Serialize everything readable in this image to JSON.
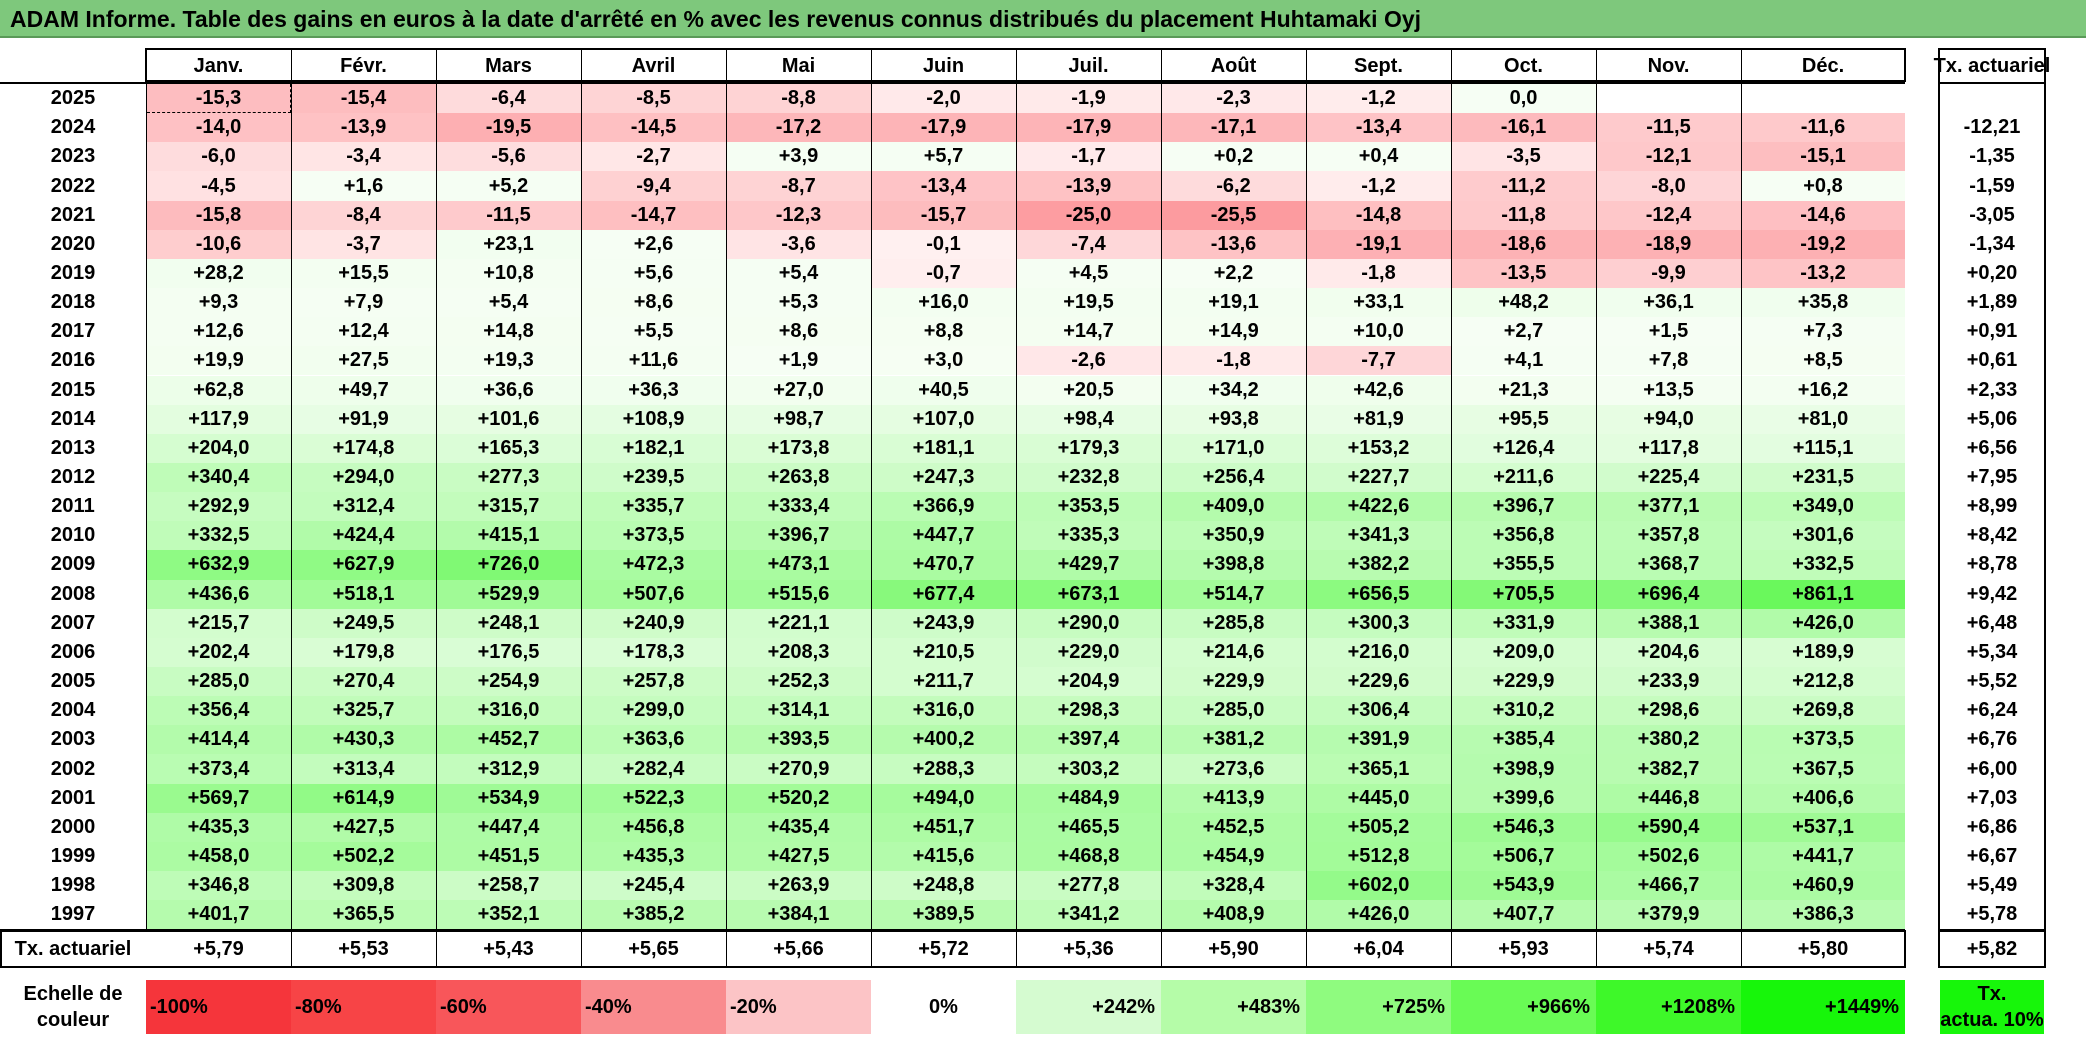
{
  "title": "ADAM Informe. Table des gains en euros à la date d'arrêté en % avec les revenus connus distribués du placement Huhtamaki Oyj",
  "months": [
    "Janv.",
    "Févr.",
    "Mars",
    "Avril",
    "Mai",
    "Juin",
    "Juil.",
    "Août",
    "Sept.",
    "Oct.",
    "Nov.",
    "Déc."
  ],
  "actuarial_header": "Tx. actuariel",
  "rows": [
    {
      "year": "2025",
      "values": [
        "-15,3",
        "-15,4",
        "-6,4",
        "-8,5",
        "-8,8",
        "-2,0",
        "-1,9",
        "-2,3",
        "-1,2",
        "0,0",
        "",
        ""
      ],
      "actuarial": ""
    },
    {
      "year": "2024",
      "values": [
        "-14,0",
        "-13,9",
        "-19,5",
        "-14,5",
        "-17,2",
        "-17,9",
        "-17,9",
        "-17,1",
        "-13,4",
        "-16,1",
        "-11,5",
        "-11,6"
      ],
      "actuarial": "-12,21"
    },
    {
      "year": "2023",
      "values": [
        "-6,0",
        "-3,4",
        "-5,6",
        "-2,7",
        "+3,9",
        "+5,7",
        "-1,7",
        "+0,2",
        "+0,4",
        "-3,5",
        "-12,1",
        "-15,1"
      ],
      "actuarial": "-1,35"
    },
    {
      "year": "2022",
      "values": [
        "-4,5",
        "+1,6",
        "+5,2",
        "-9,4",
        "-8,7",
        "-13,4",
        "-13,9",
        "-6,2",
        "-1,2",
        "-11,2",
        "-8,0",
        "+0,8"
      ],
      "actuarial": "-1,59"
    },
    {
      "year": "2021",
      "values": [
        "-15,8",
        "-8,4",
        "-11,5",
        "-14,7",
        "-12,3",
        "-15,7",
        "-25,0",
        "-25,5",
        "-14,8",
        "-11,8",
        "-12,4",
        "-14,6"
      ],
      "actuarial": "-3,05"
    },
    {
      "year": "2020",
      "values": [
        "-10,6",
        "-3,7",
        "+23,1",
        "+2,6",
        "-3,6",
        "-0,1",
        "-7,4",
        "-13,6",
        "-19,1",
        "-18,6",
        "-18,9",
        "-19,2"
      ],
      "actuarial": "-1,34"
    },
    {
      "year": "2019",
      "values": [
        "+28,2",
        "+15,5",
        "+10,8",
        "+5,6",
        "+5,4",
        "-0,7",
        "+4,5",
        "+2,2",
        "-1,8",
        "-13,5",
        "-9,9",
        "-13,2"
      ],
      "actuarial": "+0,20"
    },
    {
      "year": "2018",
      "values": [
        "+9,3",
        "+7,9",
        "+5,4",
        "+8,6",
        "+5,3",
        "+16,0",
        "+19,5",
        "+19,1",
        "+33,1",
        "+48,2",
        "+36,1",
        "+35,8"
      ],
      "actuarial": "+1,89"
    },
    {
      "year": "2017",
      "values": [
        "+12,6",
        "+12,4",
        "+14,8",
        "+5,5",
        "+8,6",
        "+8,8",
        "+14,7",
        "+14,9",
        "+10,0",
        "+2,7",
        "+1,5",
        "+7,3"
      ],
      "actuarial": "+0,91"
    },
    {
      "year": "2016",
      "values": [
        "+19,9",
        "+27,5",
        "+19,3",
        "+11,6",
        "+1,9",
        "+3,0",
        "-2,6",
        "-1,8",
        "-7,7",
        "+4,1",
        "+7,8",
        "+8,5"
      ],
      "actuarial": "+0,61"
    },
    {
      "year": "2015",
      "values": [
        "+62,8",
        "+49,7",
        "+36,6",
        "+36,3",
        "+27,0",
        "+40,5",
        "+20,5",
        "+34,2",
        "+42,6",
        "+21,3",
        "+13,5",
        "+16,2"
      ],
      "actuarial": "+2,33"
    },
    {
      "year": "2014",
      "values": [
        "+117,9",
        "+91,9",
        "+101,6",
        "+108,9",
        "+98,7",
        "+107,0",
        "+98,4",
        "+93,8",
        "+81,9",
        "+95,5",
        "+94,0",
        "+81,0"
      ],
      "actuarial": "+5,06"
    },
    {
      "year": "2013",
      "values": [
        "+204,0",
        "+174,8",
        "+165,3",
        "+182,1",
        "+173,8",
        "+181,1",
        "+179,3",
        "+171,0",
        "+153,2",
        "+126,4",
        "+117,8",
        "+115,1"
      ],
      "actuarial": "+6,56"
    },
    {
      "year": "2012",
      "values": [
        "+340,4",
        "+294,0",
        "+277,3",
        "+239,5",
        "+263,8",
        "+247,3",
        "+232,8",
        "+256,4",
        "+227,7",
        "+211,6",
        "+225,4",
        "+231,5"
      ],
      "actuarial": "+7,95"
    },
    {
      "year": "2011",
      "values": [
        "+292,9",
        "+312,4",
        "+315,7",
        "+335,7",
        "+333,4",
        "+366,9",
        "+353,5",
        "+409,0",
        "+422,6",
        "+396,7",
        "+377,1",
        "+349,0"
      ],
      "actuarial": "+8,99"
    },
    {
      "year": "2010",
      "values": [
        "+332,5",
        "+424,4",
        "+415,1",
        "+373,5",
        "+396,7",
        "+447,7",
        "+335,3",
        "+350,9",
        "+341,3",
        "+356,8",
        "+357,8",
        "+301,6"
      ],
      "actuarial": "+8,42"
    },
    {
      "year": "2009",
      "values": [
        "+632,9",
        "+627,9",
        "+726,0",
        "+472,3",
        "+473,1",
        "+470,7",
        "+429,7",
        "+398,8",
        "+382,2",
        "+355,5",
        "+368,7",
        "+332,5"
      ],
      "actuarial": "+8,78"
    },
    {
      "year": "2008",
      "values": [
        "+436,6",
        "+518,1",
        "+529,9",
        "+507,6",
        "+515,6",
        "+677,4",
        "+673,1",
        "+514,7",
        "+656,5",
        "+705,5",
        "+696,4",
        "+861,1"
      ],
      "actuarial": "+9,42"
    },
    {
      "year": "2007",
      "values": [
        "+215,7",
        "+249,5",
        "+248,1",
        "+240,9",
        "+221,1",
        "+243,9",
        "+290,0",
        "+285,8",
        "+300,3",
        "+331,9",
        "+388,1",
        "+426,0"
      ],
      "actuarial": "+6,48"
    },
    {
      "year": "2006",
      "values": [
        "+202,4",
        "+179,8",
        "+176,5",
        "+178,3",
        "+208,3",
        "+210,5",
        "+229,0",
        "+214,6",
        "+216,0",
        "+209,0",
        "+204,6",
        "+189,9"
      ],
      "actuarial": "+5,34"
    },
    {
      "year": "2005",
      "values": [
        "+285,0",
        "+270,4",
        "+254,9",
        "+257,8",
        "+252,3",
        "+211,7",
        "+204,9",
        "+229,9",
        "+229,6",
        "+229,9",
        "+233,9",
        "+212,8"
      ],
      "actuarial": "+5,52"
    },
    {
      "year": "2004",
      "values": [
        "+356,4",
        "+325,7",
        "+316,0",
        "+299,0",
        "+314,1",
        "+316,0",
        "+298,3",
        "+285,0",
        "+306,4",
        "+310,2",
        "+298,6",
        "+269,8"
      ],
      "actuarial": "+6,24"
    },
    {
      "year": "2003",
      "values": [
        "+414,4",
        "+430,3",
        "+452,7",
        "+363,6",
        "+393,5",
        "+400,2",
        "+397,4",
        "+381,2",
        "+391,9",
        "+385,4",
        "+380,2",
        "+373,5"
      ],
      "actuarial": "+6,76"
    },
    {
      "year": "2002",
      "values": [
        "+373,4",
        "+313,4",
        "+312,9",
        "+282,4",
        "+270,9",
        "+288,3",
        "+303,2",
        "+273,6",
        "+365,1",
        "+398,9",
        "+382,7",
        "+367,5"
      ],
      "actuarial": "+6,00"
    },
    {
      "year": "2001",
      "values": [
        "+569,7",
        "+614,9",
        "+534,9",
        "+522,3",
        "+520,2",
        "+494,0",
        "+484,9",
        "+413,9",
        "+445,0",
        "+399,6",
        "+446,8",
        "+406,6"
      ],
      "actuarial": "+7,03"
    },
    {
      "year": "2000",
      "values": [
        "+435,3",
        "+427,5",
        "+447,4",
        "+456,8",
        "+435,4",
        "+451,7",
        "+465,5",
        "+452,5",
        "+505,2",
        "+546,3",
        "+590,4",
        "+537,1"
      ],
      "actuarial": "+6,86"
    },
    {
      "year": "1999",
      "values": [
        "+458,0",
        "+502,2",
        "+451,5",
        "+435,3",
        "+427,5",
        "+415,6",
        "+468,8",
        "+454,9",
        "+512,8",
        "+506,7",
        "+502,6",
        "+441,7"
      ],
      "actuarial": "+6,67"
    },
    {
      "year": "1998",
      "values": [
        "+346,8",
        "+309,8",
        "+258,7",
        "+245,4",
        "+263,9",
        "+248,8",
        "+277,8",
        "+328,4",
        "+602,0",
        "+543,9",
        "+466,7",
        "+460,9"
      ],
      "actuarial": "+5,49"
    },
    {
      "year": "1997",
      "values": [
        "+401,7",
        "+365,5",
        "+352,1",
        "+385,2",
        "+384,1",
        "+389,5",
        "+341,2",
        "+408,9",
        "+426,0",
        "+407,7",
        "+379,9",
        "+386,3"
      ],
      "actuarial": "+5,78"
    }
  ],
  "summary": {
    "label": "Tx. actuariel",
    "values": [
      "+5,79",
      "+5,53",
      "+5,43",
      "+5,65",
      "+5,66",
      "+5,72",
      "+5,36",
      "+5,90",
      "+6,04",
      "+5,93",
      "+5,74",
      "+5,80"
    ],
    "total": "+5,82"
  },
  "scale": {
    "label_line1": "Echelle de",
    "label_line2": "couleur",
    "items": [
      {
        "text": "-100%",
        "color": "#f5353b"
      },
      {
        "text": "-80%",
        "color": "#f74446"
      },
      {
        "text": "-60%",
        "color": "#f8565a"
      },
      {
        "text": "-40%",
        "color": "#f98b8e"
      },
      {
        "text": "-20%",
        "color": "#fcc4c6"
      },
      {
        "text": "0%",
        "color": "#ffffff"
      },
      {
        "text": "+242%",
        "color": "#d5fbd0"
      },
      {
        "text": "+483%",
        "color": "#b5fca8"
      },
      {
        "text": "+725%",
        "color": "#8ffb7f"
      },
      {
        "text": "+966%",
        "color": "#69fb55"
      },
      {
        "text": "+1208%",
        "color": "#3ef829"
      },
      {
        "text": "+1449%",
        "color": "#17f60a"
      }
    ],
    "rate_line1": "Tx.",
    "rate_line2": "actua. 10%",
    "rate_color": "#17f60a"
  }
}
